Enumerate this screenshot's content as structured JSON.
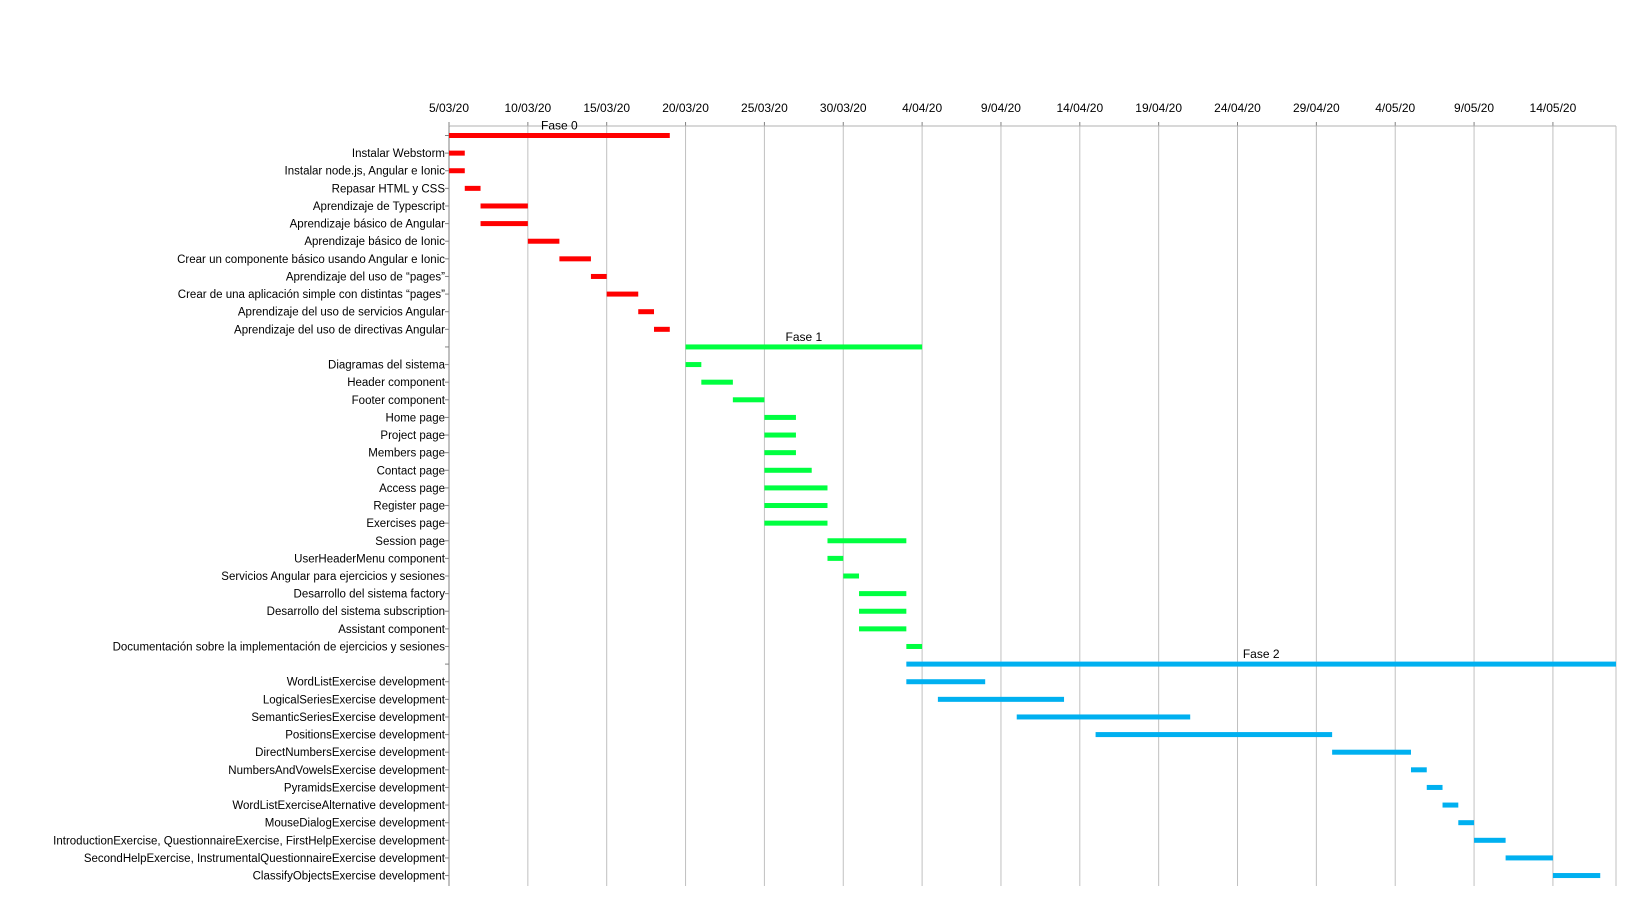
{
  "chart_data": {
    "type": "gantt",
    "title": "",
    "xlabel": "",
    "ylabel": "",
    "x_axis": {
      "type": "date",
      "min": "2020-03-05",
      "max": "2020-05-18",
      "tick_step_days": 5,
      "tick_labels": [
        "5/03/20",
        "10/03/20",
        "15/03/20",
        "20/03/20",
        "25/03/20",
        "30/03/20",
        "4/04/20",
        "9/04/20",
        "14/04/20",
        "19/04/20",
        "24/04/20",
        "29/04/20",
        "4/05/20",
        "9/05/20",
        "14/05/20"
      ],
      "grid": true
    },
    "colors": {
      "Fase 0": "#ff0000",
      "Fase 1": "#00ff40",
      "Fase 2": "#00b0f0",
      "grid": "#c0c0c0"
    },
    "tasks": [
      {
        "label": "",
        "group": "Fase 0",
        "summary": true,
        "bar_label": "Fase 0",
        "start": "2020-03-05",
        "end": "2020-03-19"
      },
      {
        "label": "Instalar Webstorm",
        "group": "Fase 0",
        "start": "2020-03-05",
        "end": "2020-03-06"
      },
      {
        "label": "Instalar node.js, Angular e Ionic",
        "group": "Fase 0",
        "start": "2020-03-05",
        "end": "2020-03-06"
      },
      {
        "label": "Repasar HTML y CSS",
        "group": "Fase 0",
        "start": "2020-03-06",
        "end": "2020-03-07"
      },
      {
        "label": "Aprendizaje de Typescript",
        "group": "Fase 0",
        "start": "2020-03-07",
        "end": "2020-03-10"
      },
      {
        "label": "Aprendizaje básico de Angular",
        "group": "Fase 0",
        "start": "2020-03-07",
        "end": "2020-03-10"
      },
      {
        "label": "Aprendizaje básico de Ionic",
        "group": "Fase 0",
        "start": "2020-03-10",
        "end": "2020-03-12"
      },
      {
        "label": "Crear un componente básico usando Angular e Ionic",
        "group": "Fase 0",
        "start": "2020-03-12",
        "end": "2020-03-14"
      },
      {
        "label": "Aprendizaje del uso de “pages”",
        "group": "Fase 0",
        "start": "2020-03-14",
        "end": "2020-03-15"
      },
      {
        "label": "Crear de una aplicación simple con distintas “pages”",
        "group": "Fase 0",
        "start": "2020-03-15",
        "end": "2020-03-17"
      },
      {
        "label": "Aprendizaje del uso de servicios Angular",
        "group": "Fase 0",
        "start": "2020-03-17",
        "end": "2020-03-18"
      },
      {
        "label": "Aprendizaje del uso de directivas Angular",
        "group": "Fase 0",
        "start": "2020-03-18",
        "end": "2020-03-19"
      },
      {
        "label": "",
        "group": "Fase 1",
        "summary": true,
        "bar_label": "Fase 1",
        "start": "2020-03-20",
        "end": "2020-04-04"
      },
      {
        "label": "Diagramas del sistema",
        "group": "Fase 1",
        "start": "2020-03-20",
        "end": "2020-03-21"
      },
      {
        "label": "Header component",
        "group": "Fase 1",
        "start": "2020-03-21",
        "end": "2020-03-23"
      },
      {
        "label": "Footer component",
        "group": "Fase 1",
        "start": "2020-03-23",
        "end": "2020-03-25"
      },
      {
        "label": "Home page",
        "group": "Fase 1",
        "start": "2020-03-25",
        "end": "2020-03-27"
      },
      {
        "label": "Project page",
        "group": "Fase 1",
        "start": "2020-03-25",
        "end": "2020-03-27"
      },
      {
        "label": "Members page",
        "group": "Fase 1",
        "start": "2020-03-25",
        "end": "2020-03-27"
      },
      {
        "label": "Contact page",
        "group": "Fase 1",
        "start": "2020-03-25",
        "end": "2020-03-28"
      },
      {
        "label": "Access page",
        "group": "Fase 1",
        "start": "2020-03-25",
        "end": "2020-03-29"
      },
      {
        "label": "Register page",
        "group": "Fase 1",
        "start": "2020-03-25",
        "end": "2020-03-29"
      },
      {
        "label": "Exercises page",
        "group": "Fase 1",
        "start": "2020-03-25",
        "end": "2020-03-29"
      },
      {
        "label": "Session page",
        "group": "Fase 1",
        "start": "2020-03-29",
        "end": "2020-04-03"
      },
      {
        "label": "UserHeaderMenu component",
        "group": "Fase 1",
        "start": "2020-03-29",
        "end": "2020-03-30"
      },
      {
        "label": "Servicios Angular para ejercicios y sesiones",
        "group": "Fase 1",
        "start": "2020-03-30",
        "end": "2020-03-31"
      },
      {
        "label": "Desarrollo del sistema factory",
        "group": "Fase 1",
        "start": "2020-03-31",
        "end": "2020-04-03"
      },
      {
        "label": "Desarrollo del sistema subscription",
        "group": "Fase 1",
        "start": "2020-03-31",
        "end": "2020-04-03"
      },
      {
        "label": "Assistant component",
        "group": "Fase 1",
        "start": "2020-03-31",
        "end": "2020-04-03"
      },
      {
        "label": "Documentación sobre la implementación de ejercicios y sesiones",
        "group": "Fase 1",
        "start": "2020-04-03",
        "end": "2020-04-04"
      },
      {
        "label": "",
        "group": "Fase 2",
        "summary": true,
        "bar_label": "Fase 2",
        "start": "2020-04-03",
        "end": "2020-05-18"
      },
      {
        "label": "WordListExercise development",
        "group": "Fase 2",
        "start": "2020-04-03",
        "end": "2020-04-08"
      },
      {
        "label": "LogicalSeriesExercise development",
        "group": "Fase 2",
        "start": "2020-04-05",
        "end": "2020-04-13"
      },
      {
        "label": "SemanticSeriesExercise development",
        "group": "Fase 2",
        "start": "2020-04-10",
        "end": "2020-04-21"
      },
      {
        "label": "PositionsExercise development",
        "group": "Fase 2",
        "start": "2020-04-15",
        "end": "2020-04-30"
      },
      {
        "label": "DirectNumbersExercise development",
        "group": "Fase 2",
        "start": "2020-04-30",
        "end": "2020-05-05"
      },
      {
        "label": "NumbersAndVowelsExercise development",
        "group": "Fase 2",
        "start": "2020-05-05",
        "end": "2020-05-06"
      },
      {
        "label": "PyramidsExercise development",
        "group": "Fase 2",
        "start": "2020-05-06",
        "end": "2020-05-07"
      },
      {
        "label": "WordListExerciseAlternative development",
        "group": "Fase 2",
        "start": "2020-05-07",
        "end": "2020-05-08"
      },
      {
        "label": "MouseDialogExercise development",
        "group": "Fase 2",
        "start": "2020-05-08",
        "end": "2020-05-09"
      },
      {
        "label": "IntroductionExercise, QuestionnaireExercise, FirstHelpExercise development",
        "group": "Fase 2",
        "start": "2020-05-09",
        "end": "2020-05-11"
      },
      {
        "label": "SecondHelpExercise, InstrumentalQuestionnaireExercise development",
        "group": "Fase 2",
        "start": "2020-05-11",
        "end": "2020-05-14"
      },
      {
        "label": "ClassifyObjectsExercise development",
        "group": "Fase 2",
        "start": "2020-05-14",
        "end": "2020-05-17"
      }
    ]
  }
}
